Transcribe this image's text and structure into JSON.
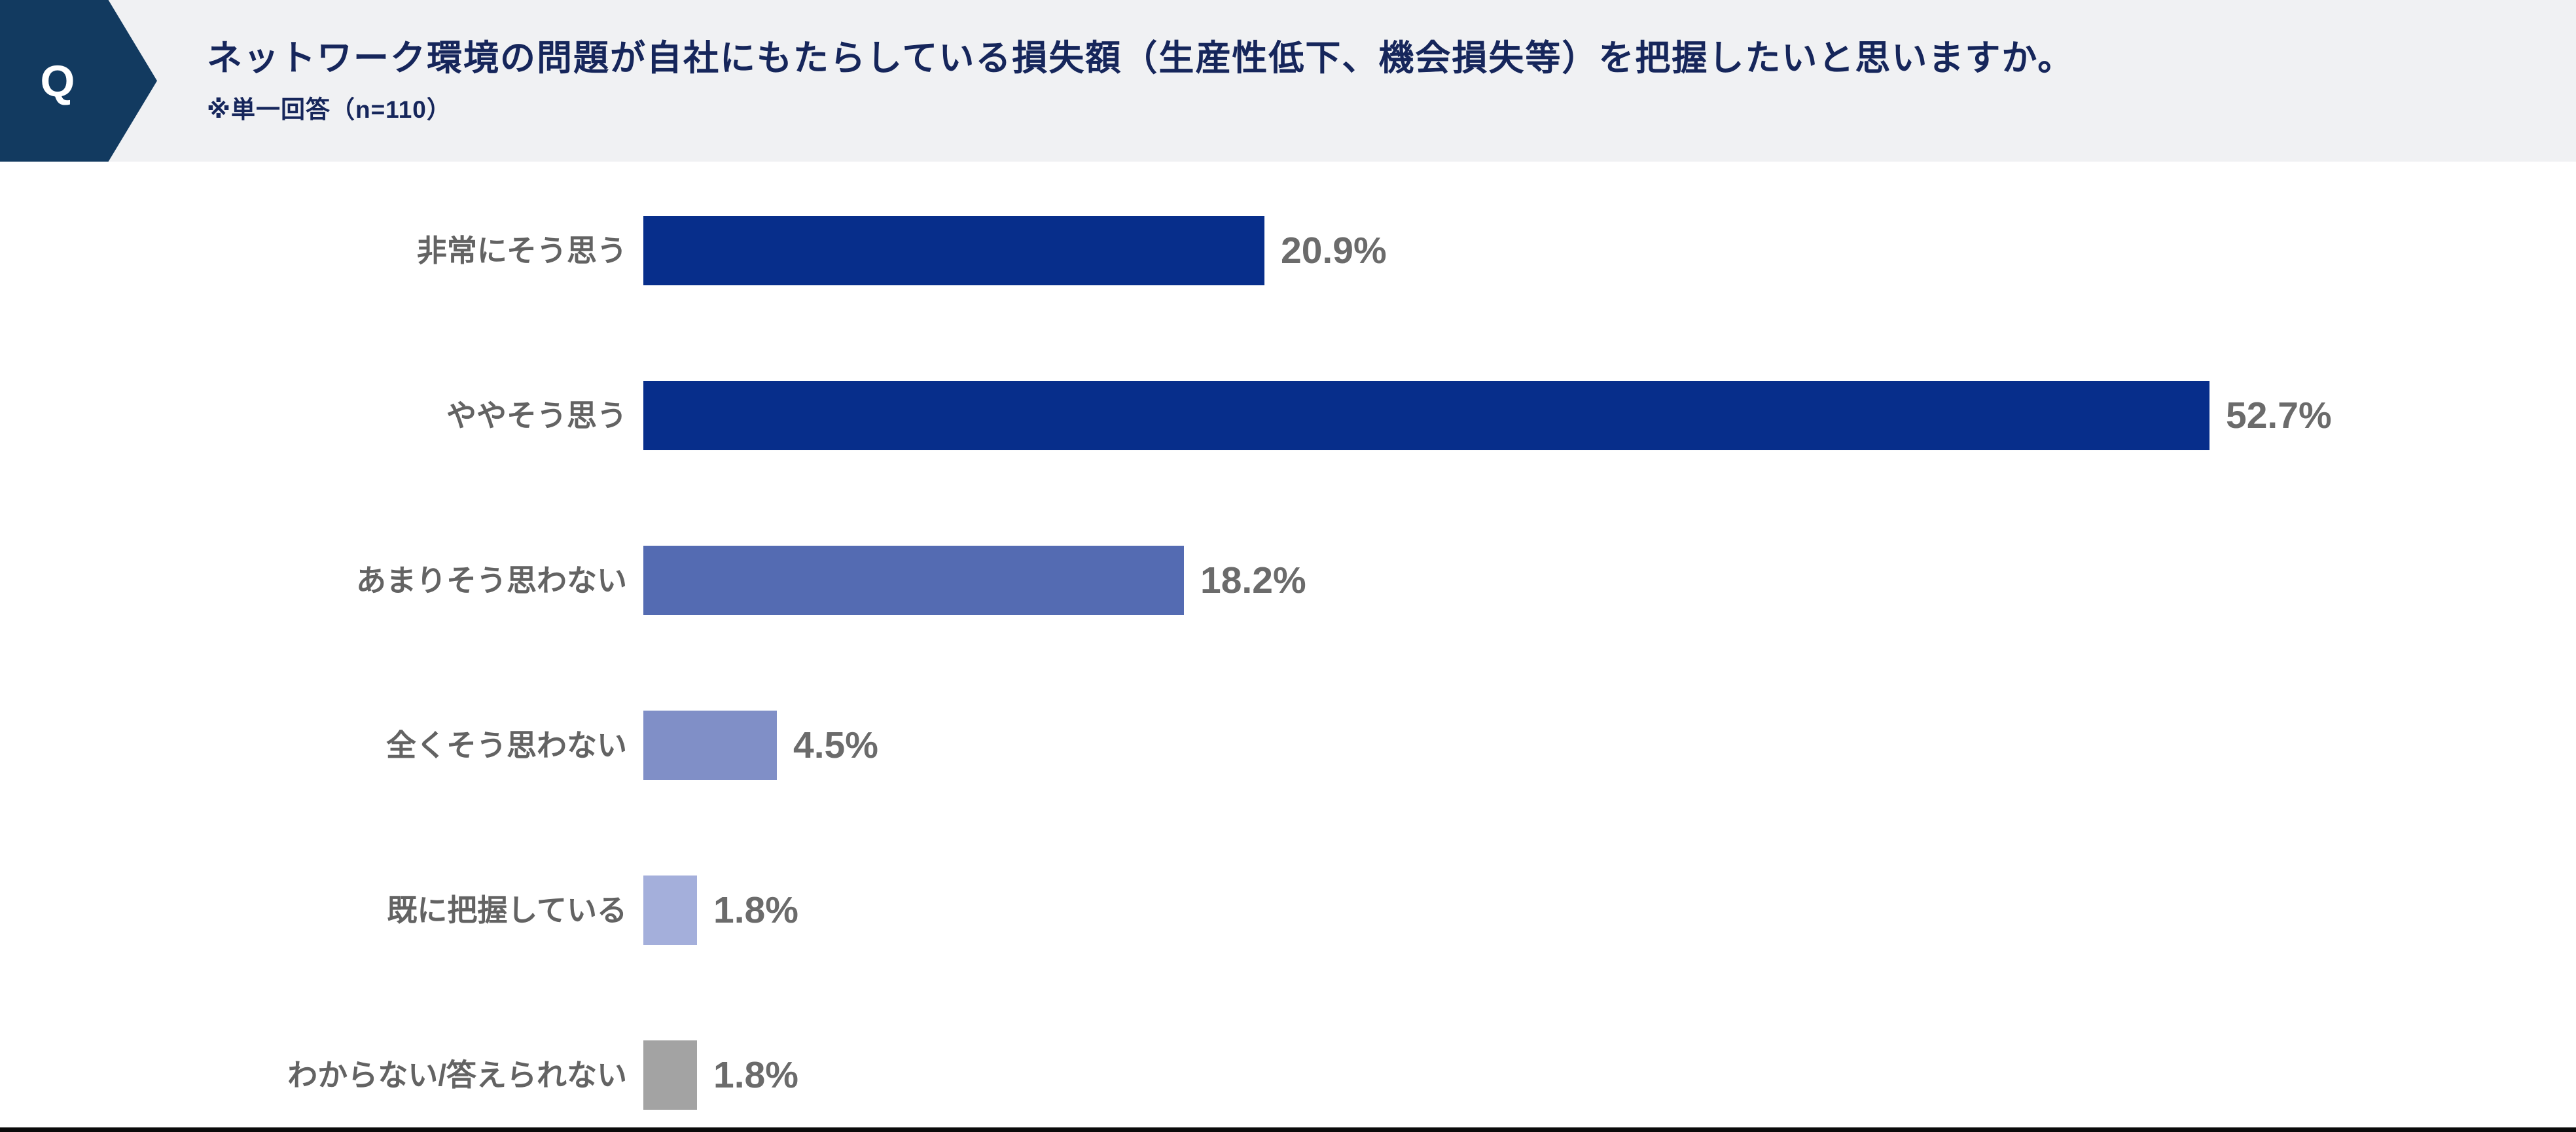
{
  "header": {
    "q_label": "Q",
    "title": "ネットワーク環境の問題が自社にもたらしている損失額（生産性低下、機会損失等）を把握したいと思いますか。",
    "subtitle": "※単一回答（n=110）"
  },
  "chart_data": {
    "type": "bar",
    "orientation": "horizontal",
    "title": "",
    "xlabel": "",
    "ylabel": "",
    "categories": [
      "非常にそう思う",
      "ややそう思う",
      "あまりそう思わない",
      "全くそう思わない",
      "既に把握している",
      "わからない/答えられない"
    ],
    "values": [
      20.9,
      52.7,
      18.2,
      4.5,
      1.8,
      1.8
    ],
    "value_labels": [
      "20.9%",
      "52.7%",
      "18.2%",
      "4.5%",
      "1.8%",
      "1.8%"
    ],
    "unit": "%",
    "n": 110,
    "xlim": [
      0,
      60
    ],
    "grid": false,
    "legend": false,
    "value_label_position": "end-of-bar",
    "bar_colors": [
      "#072E8B",
      "#072E8B",
      "#546BB2",
      "#808FC7",
      "#A4AFDB",
      "#A3A3A3"
    ]
  },
  "colors": {
    "header_background": "#F0F1F3",
    "badge_background": "#123A60",
    "badge_text": "#FFFFFF",
    "question_text": "#16265B",
    "category_label_text": "#636363",
    "value_label_text": "#6B6B6B",
    "baseline": "#0A0A0A"
  }
}
